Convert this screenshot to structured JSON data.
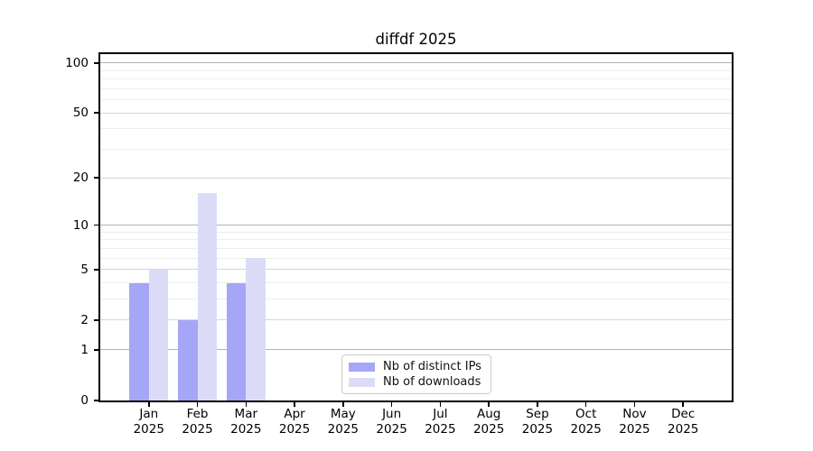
{
  "chart_data": {
    "type": "bar",
    "title": "diffdf 2025",
    "categories": [
      "Jan",
      "Feb",
      "Mar",
      "Apr",
      "May",
      "Jun",
      "Jul",
      "Aug",
      "Sep",
      "Oct",
      "Nov",
      "Dec"
    ],
    "category_year_label": "2025",
    "series": [
      {
        "name": "Nb of distinct IPs",
        "color": "#a6a6f6",
        "values": [
          4,
          2,
          4,
          0,
          0,
          0,
          0,
          0,
          0,
          0,
          0,
          0
        ]
      },
      {
        "name": "Nb of downloads",
        "color": "#dcdcf8",
        "values": [
          5,
          16,
          6,
          0,
          0,
          0,
          0,
          0,
          0,
          0,
          0,
          0
        ]
      }
    ],
    "yscale": "log1p",
    "ylim": [
      0,
      113
    ],
    "yticks": [
      0,
      1,
      2,
      5,
      10,
      20,
      50,
      100
    ],
    "yticks_emphasis": [
      1,
      10,
      100
    ],
    "minor_gridlines": [
      3,
      4,
      6,
      7,
      8,
      9,
      30,
      40,
      60,
      70,
      80,
      90
    ],
    "grid": true,
    "legend_position": "lower center-right inside plot"
  },
  "colors": {
    "background": "#ffffff",
    "spine": "#000000",
    "text": "#000000",
    "grid_major": "#d6d6d6",
    "grid_emphasis": "#b2b2b2",
    "grid_minor": "#ededed",
    "legend_border": "#cccccc"
  }
}
